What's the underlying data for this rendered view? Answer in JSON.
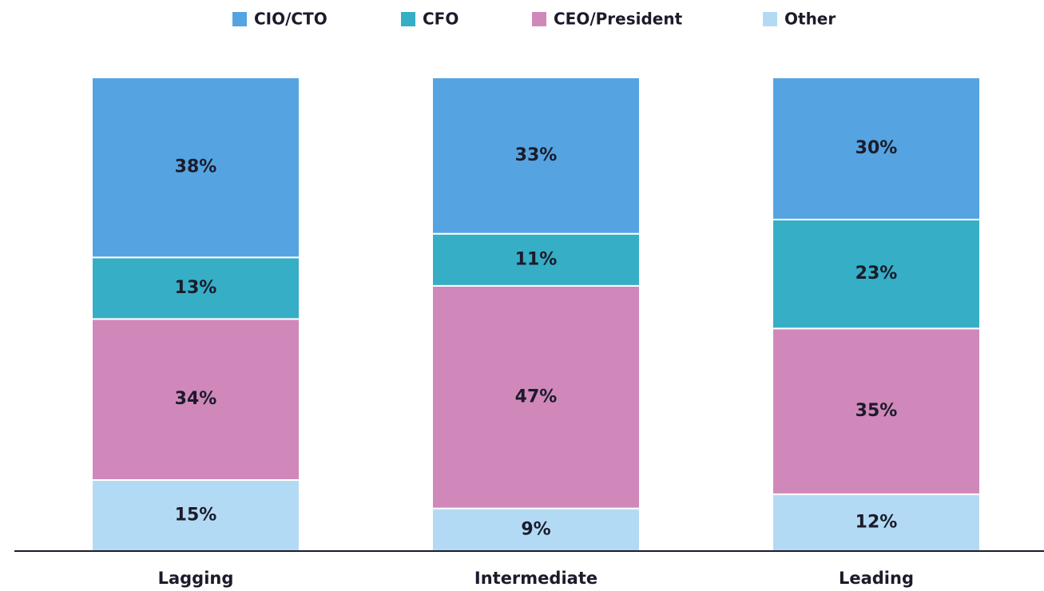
{
  "chart_data": {
    "type": "stacked_bar",
    "categories": [
      "Lagging",
      "Intermediate",
      "Leading"
    ],
    "series": [
      {
        "name": "CIO/CTO",
        "color": "#55a4e1",
        "values": [
          38,
          33,
          30
        ],
        "value_labels": [
          "38%",
          "33%",
          "30%"
        ]
      },
      {
        "name": "CFO",
        "color": "#36aec6",
        "values": [
          13,
          11,
          23
        ],
        "value_labels": [
          "13%",
          "11%",
          "23%"
        ]
      },
      {
        "name": "CEO/President",
        "color": "#d088bb",
        "values": [
          34,
          47,
          35
        ],
        "value_labels": [
          "34%",
          "47%",
          "35%"
        ]
      },
      {
        "name": "Other",
        "color": "#b3daf4",
        "values": [
          15,
          9,
          12
        ],
        "value_labels": [
          "15%",
          "9%",
          "12%"
        ]
      }
    ],
    "ylim": [
      0,
      100
    ],
    "legend": "top"
  }
}
